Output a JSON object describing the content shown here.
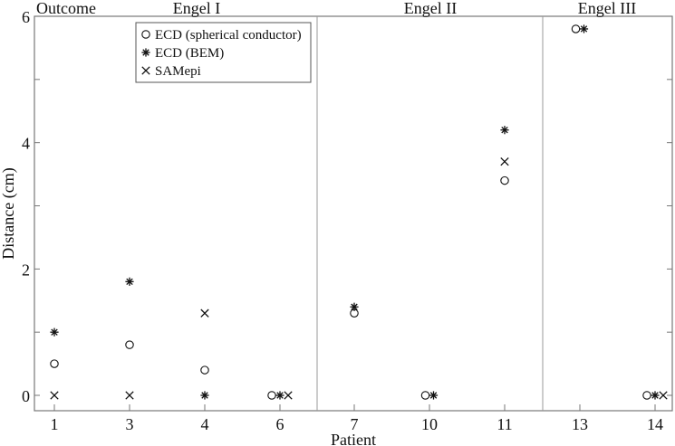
{
  "chart_data": {
    "type": "scatter",
    "title": "",
    "xlabel": "Patient",
    "ylabel": "Distance (cm)",
    "ylim": [
      -0.3,
      6
    ],
    "yticks": [
      0,
      2,
      4,
      6
    ],
    "categories": [
      "1",
      "3",
      "4",
      "6",
      "7",
      "10",
      "11",
      "13",
      "14"
    ],
    "groups": [
      {
        "label": "Outcome",
        "span": [],
        "header": true
      },
      {
        "label": "Engel I",
        "patients": [
          "1",
          "3",
          "4",
          "6"
        ]
      },
      {
        "label": "Engel II",
        "patients": [
          "7",
          "10",
          "11"
        ]
      },
      {
        "label": "Engel III",
        "patients": [
          "13",
          "14"
        ]
      }
    ],
    "series": [
      {
        "name": "ECD (spherical conductor)",
        "marker": "circle",
        "values": [
          0.5,
          0.8,
          0.4,
          0.0,
          1.3,
          0.0,
          3.4,
          5.8,
          0.0
        ]
      },
      {
        "name": "ECD (BEM)",
        "marker": "asterisk",
        "values": [
          1.0,
          1.8,
          0.0,
          0.0,
          1.4,
          0.0,
          4.2,
          5.8,
          0.0
        ]
      },
      {
        "name": "SAMepi",
        "marker": "cross",
        "values": [
          0.0,
          0.0,
          1.3,
          0.0,
          null,
          null,
          3.7,
          null,
          0.0
        ]
      }
    ],
    "legend": {
      "position": "upper-left-inside",
      "entries": [
        "ECD (spherical conductor)",
        "ECD (BEM)",
        "SAMepi"
      ]
    },
    "grid": false
  }
}
